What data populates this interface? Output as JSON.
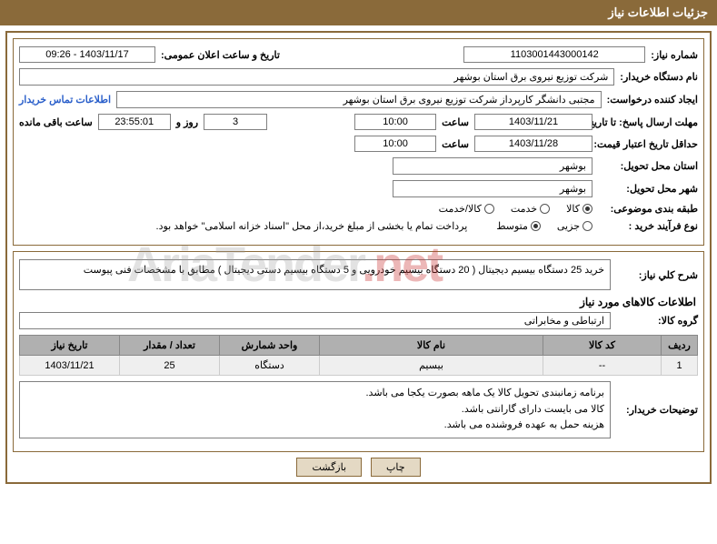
{
  "title_bar": "جزئیات اطلاعات نیاز",
  "watermark_text": "AriaTender",
  "watermark_suffix": ".net",
  "fields": {
    "need_number_label": "شماره نیاز:",
    "need_number": "1103001443000142",
    "announce_label": "تاریخ و ساعت اعلان عمومی:",
    "announce_value": "1403/11/17 - 09:26",
    "buyer_org_label": "نام دستگاه خریدار:",
    "buyer_org": "شرکت توزیع نیروی برق استان بوشهر",
    "requester_label": "ایجاد کننده درخواست:",
    "requester": "مجتبی دانشگر کارپرداز شرکت توزیع نیروی برق استان بوشهر",
    "contact_link": "اطلاعات تماس خریدار",
    "deadline_label": "مهلت ارسال پاسخ: تا تاریخ:",
    "deadline_date": "1403/11/21",
    "time_label": "ساعت",
    "deadline_time": "10:00",
    "days_label": "روز و",
    "days_value": "3",
    "remaining_time": "23:55:01",
    "remaining_label": "ساعت باقی مانده",
    "validity_label": "حداقل تاریخ اعتبار قیمت: تا تاریخ:",
    "validity_date": "1403/11/28",
    "validity_time": "10:00",
    "province_label": "استان محل تحویل:",
    "province": "بوشهر",
    "city_label": "شهر محل تحویل:",
    "city": "بوشهر",
    "category_label": "طبقه بندی موضوعی:",
    "process_label": "نوع فرآیند خرید :",
    "payment_note": "پرداخت تمام یا بخشی از مبلغ خرید،از محل \"اسناد خزانه اسلامی\" خواهد بود.",
    "desc_label": "شرح کلي نياز:",
    "desc_text": "خرید 25 دستگاه بیسیم دیجیتال ( 20 دستگاه بیسیم خودرویی و 5 دستگاه بیسیم دستی دیجیتال ) مطابق با مشخصات فنی پیوست",
    "items_heading": "اطلاعات کالاهای مورد نیاز",
    "group_label": "گروه کالا:",
    "group_value": "ارتباطی و مخابراتی",
    "buyer_notes_label": "توضیحات خریدار:",
    "buyer_notes_1": "برنامه زمانبندی تحویل کالا یک ماهه بصورت یکجا می باشد.",
    "buyer_notes_2": "کالا می بایست دارای گارانتی باشد.",
    "buyer_notes_3": "هزینه حمل به عهده فروشنده می باشد."
  },
  "radios": {
    "category": {
      "options": [
        "کالا",
        "خدمت",
        "کالا/خدمت"
      ],
      "selected": 0
    },
    "process": {
      "options": [
        "جزیی",
        "متوسط"
      ],
      "selected": 1
    }
  },
  "table": {
    "headers": [
      "ردیف",
      "کد کالا",
      "نام کالا",
      "واحد شمارش",
      "تعداد / مقدار",
      "تاریخ نیاز"
    ],
    "rows": [
      [
        "1",
        "--",
        "بیسیم",
        "دستگاه",
        "25",
        "1403/11/21"
      ]
    ],
    "col_widths": [
      "40px",
      "130px",
      "auto",
      "110px",
      "110px",
      "110px"
    ]
  },
  "buttons": {
    "print": "چاپ",
    "back": "بازگشت"
  },
  "colors": {
    "brand": "#8a6a3a",
    "header_bg": "#b0b0b0",
    "row_bg": "#efefef",
    "btn_bg": "#e4d9c4"
  }
}
